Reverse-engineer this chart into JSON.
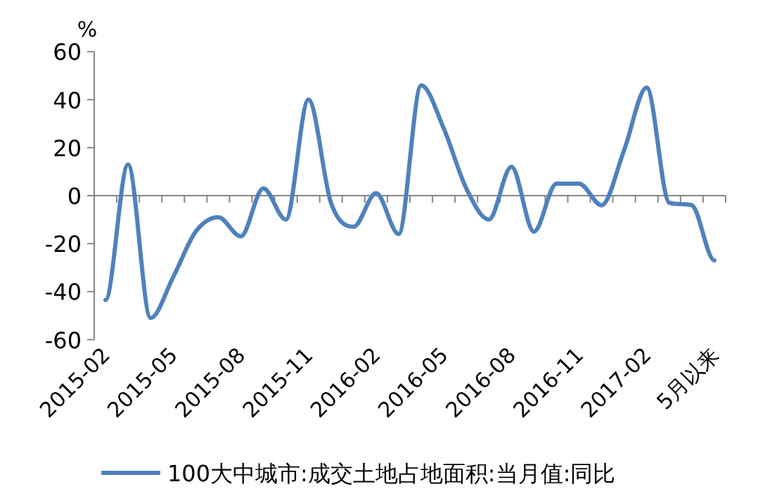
{
  "chart_data": {
    "type": "line",
    "ylabel": "%",
    "categories": [
      "2015-02",
      null,
      null,
      "2015-05",
      null,
      null,
      "2015-08",
      null,
      null,
      "2015-11",
      null,
      null,
      "2016-02",
      null,
      null,
      "2016-05",
      null,
      null,
      "2016-08",
      null,
      null,
      "2016-11",
      null,
      null,
      "2017-02",
      null,
      null,
      "5月以来"
    ],
    "series": [
      {
        "name": "100大中城市:成交土地占地面积:当月值:同比",
        "color": "#4f81bd",
        "values": [
          -43.5,
          13,
          -51,
          -34,
          -15,
          -9,
          -17,
          3,
          -10,
          40,
          -3,
          -13,
          1,
          -16,
          46,
          28,
          3,
          -10,
          12,
          -15,
          5,
          5,
          -4,
          19,
          45,
          -3,
          -4,
          -27
        ]
      }
    ],
    "ylim": [
      -60,
      60
    ],
    "yticks": [
      -60,
      -40,
      -20,
      0,
      20,
      40,
      60
    ],
    "legend": "bottom",
    "marker": "none",
    "line_style": "solid"
  }
}
